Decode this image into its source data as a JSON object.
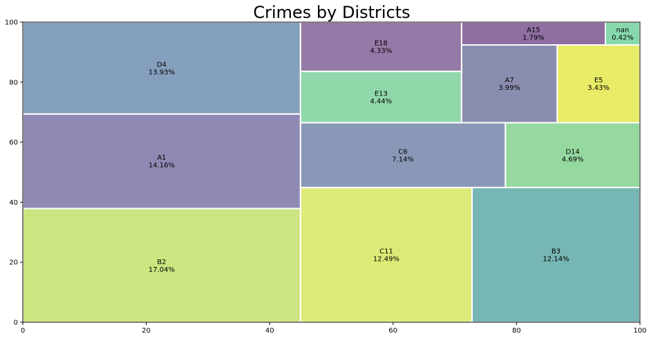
{
  "chart_data": {
    "type": "treemap",
    "title": "Crimes by Districts",
    "xlim": [
      0,
      100
    ],
    "ylim": [
      0,
      100
    ],
    "xticks": [
      "0",
      "20",
      "40",
      "60",
      "80",
      "100"
    ],
    "yticks": [
      "0",
      "20",
      "40",
      "60",
      "80",
      "100"
    ],
    "grid": false,
    "legend": "none",
    "cells": [
      {
        "label": "B2",
        "pct": "17.04%",
        "value": 17.04,
        "x": 0,
        "y": 0,
        "w": 45.0,
        "h": 37.9,
        "color": "#c2e16a"
      },
      {
        "label": "A1",
        "pct": "14.16%",
        "value": 14.16,
        "x": 0,
        "y": 37.9,
        "w": 45.0,
        "h": 31.5,
        "color": "#7b75a6"
      },
      {
        "label": "D4",
        "pct": "13.93%",
        "value": 13.93,
        "x": 0,
        "y": 69.4,
        "w": 45.0,
        "h": 30.6,
        "color": "#708fb1"
      },
      {
        "label": "C11",
        "pct": "12.49%",
        "value": 12.49,
        "x": 45.0,
        "y": 0,
        "w": 27.8,
        "h": 44.9,
        "color": "#d8e65f"
      },
      {
        "label": "B3",
        "pct": "12.14%",
        "value": 12.14,
        "x": 72.8,
        "y": 0,
        "w": 27.2,
        "h": 44.9,
        "color": "#5ea9a7"
      },
      {
        "label": "C6",
        "pct": "7.14%",
        "value": 7.14,
        "x": 45.0,
        "y": 44.9,
        "w": 33.2,
        "h": 21.6,
        "color": "#7686ac"
      },
      {
        "label": "D14",
        "pct": "4.69%",
        "value": 4.69,
        "x": 78.2,
        "y": 44.9,
        "w": 21.8,
        "h": 21.6,
        "color": "#82d291"
      },
      {
        "label": "E13",
        "pct": "4.44%",
        "value": 4.44,
        "x": 45.0,
        "y": 66.5,
        "w": 26.1,
        "h": 17.1,
        "color": "#7cd09b"
      },
      {
        "label": "E18",
        "pct": "4.33%",
        "value": 4.33,
        "x": 45.0,
        "y": 83.6,
        "w": 26.1,
        "h": 16.4,
        "color": "#826198"
      },
      {
        "label": "A7",
        "pct": "3.99%",
        "value": 3.99,
        "x": 71.1,
        "y": 66.5,
        "w": 15.5,
        "h": 25.9,
        "color": "#76799f"
      },
      {
        "label": "E5",
        "pct": "3.43%",
        "value": 3.43,
        "x": 86.6,
        "y": 66.5,
        "w": 13.4,
        "h": 25.9,
        "color": "#e3e74a"
      },
      {
        "label": "A15",
        "pct": "1.79%",
        "value": 1.79,
        "x": 71.1,
        "y": 92.4,
        "w": 23.3,
        "h": 7.6,
        "color": "#7b5592"
      },
      {
        "label": "nan",
        "pct": "0.42%",
        "value": 0.42,
        "x": 94.4,
        "y": 92.4,
        "w": 5.6,
        "h": 7.6,
        "color": "#72d29d"
      }
    ]
  }
}
